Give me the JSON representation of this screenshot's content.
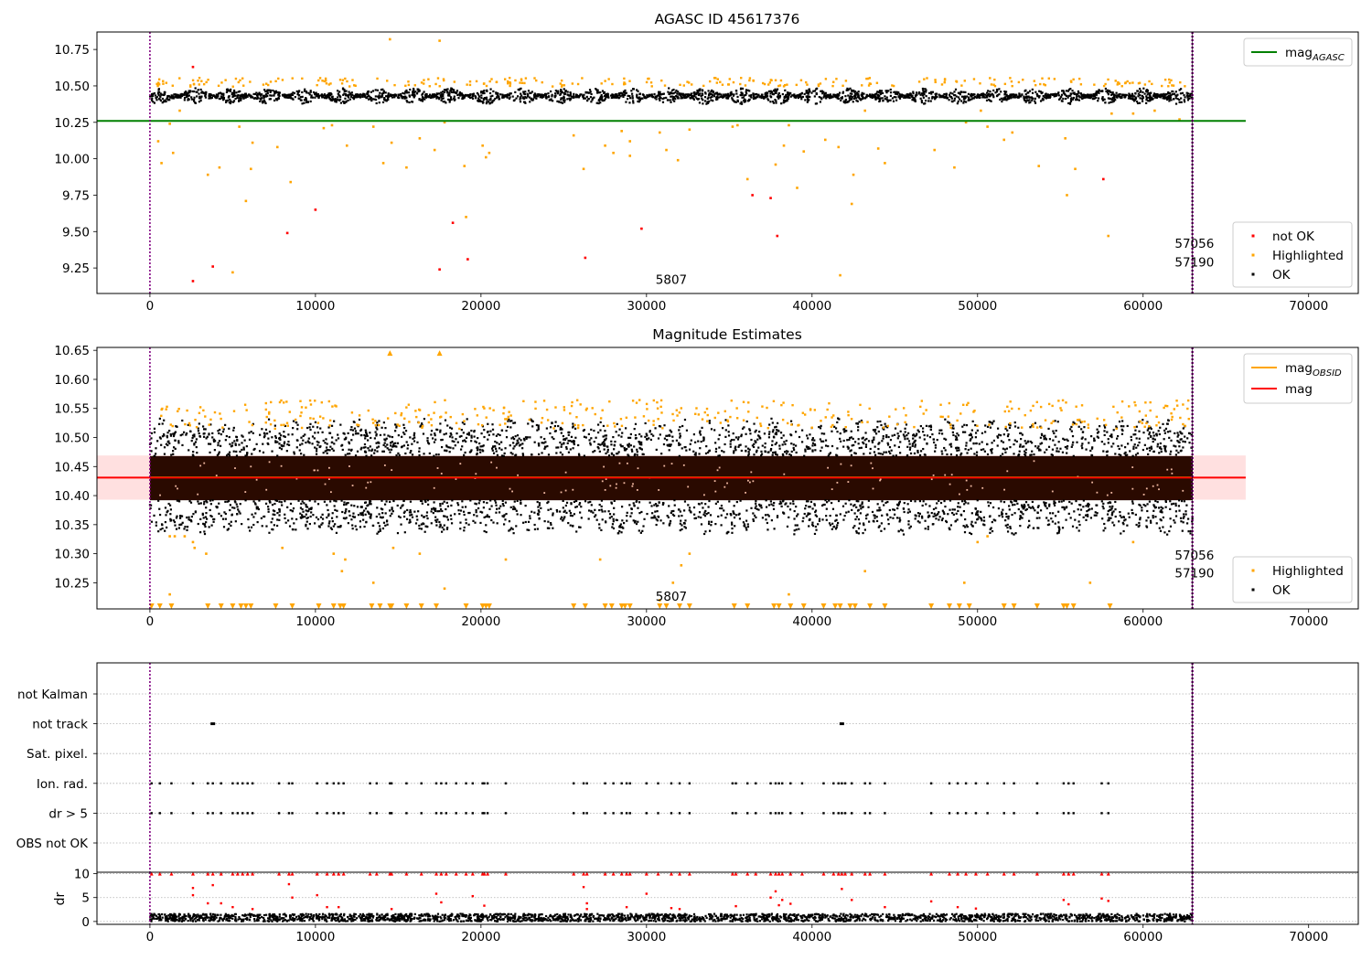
{
  "colors": {
    "ok": "#000000",
    "highlighted": "#ffa500",
    "not_ok": "#ff0000",
    "agasc_line": "#008000",
    "mag_line": "#ff0000",
    "obsid_line": "#ffa500",
    "band": "#ffcccc",
    "obs_line": "#800080",
    "grid": "#b0b0b0"
  },
  "chart_data": [
    {
      "type": "scatter",
      "title": "AGASC ID 45617376",
      "xlim": [
        -3200,
        73000
      ],
      "ylim": [
        9.075,
        10.87
      ],
      "xticks": [
        0,
        10000,
        20000,
        30000,
        40000,
        50000,
        60000,
        70000
      ],
      "yticks": [
        9.25,
        9.5,
        9.75,
        10.0,
        10.25,
        10.5,
        10.75
      ],
      "hlines": [
        {
          "name": "mag",
          "sub": "AGASC",
          "y": 10.26,
          "x_range": [
            -3200,
            66200
          ],
          "color": "#008000"
        }
      ],
      "vlines": [
        0,
        62980
      ],
      "annotations": [
        {
          "text": "5807",
          "x": 31500,
          "y": 9.14
        },
        {
          "text": "57056",
          "x": 63100,
          "y": 9.39
        },
        {
          "text": "57190",
          "x": 63100,
          "y": 9.26
        }
      ],
      "ok_band": {
        "center": 10.43,
        "halfwidth": 0.055,
        "x_range": [
          0,
          62980
        ]
      },
      "series": [
        {
          "name": "not OK",
          "color": "#ff0000",
          "points": [
            [
              2600,
              10.63
            ],
            [
              2600,
              9.16
            ],
            [
              3800,
              9.26
            ],
            [
              8300,
              9.49
            ],
            [
              10000,
              9.65
            ],
            [
              17500,
              9.24
            ],
            [
              18300,
              9.56
            ],
            [
              19200,
              9.31
            ],
            [
              26300,
              9.32
            ],
            [
              29700,
              9.52
            ],
            [
              36400,
              9.75
            ],
            [
              37500,
              9.73
            ],
            [
              37900,
              9.47
            ],
            [
              57600,
              9.86
            ]
          ]
        },
        {
          "name": "Highlighted",
          "color": "#ffa500",
          "points": [
            [
              500,
              10.12
            ],
            [
              700,
              9.97
            ],
            [
              1200,
              10.24
            ],
            [
              1400,
              10.04
            ],
            [
              1800,
              10.33
            ],
            [
              3500,
              9.89
            ],
            [
              4200,
              9.94
            ],
            [
              5000,
              9.22
            ],
            [
              5400,
              10.22
            ],
            [
              5800,
              9.71
            ],
            [
              6100,
              9.93
            ],
            [
              6200,
              10.11
            ],
            [
              7700,
              10.08
            ],
            [
              8500,
              9.84
            ],
            [
              10500,
              10.21
            ],
            [
              11000,
              10.23
            ],
            [
              11900,
              10.09
            ],
            [
              13500,
              10.22
            ],
            [
              14100,
              9.97
            ],
            [
              14500,
              10.82
            ],
            [
              14600,
              10.11
            ],
            [
              15500,
              9.94
            ],
            [
              16300,
              10.14
            ],
            [
              17200,
              10.06
            ],
            [
              17500,
              10.81
            ],
            [
              17800,
              10.25
            ],
            [
              19000,
              9.95
            ],
            [
              19100,
              9.6
            ],
            [
              20100,
              10.09
            ],
            [
              20300,
              10.01
            ],
            [
              20500,
              10.04
            ],
            [
              25600,
              10.16
            ],
            [
              26200,
              9.93
            ],
            [
              27500,
              10.09
            ],
            [
              28000,
              10.04
            ],
            [
              28500,
              10.19
            ],
            [
              29000,
              10.02
            ],
            [
              29000,
              10.12
            ],
            [
              30800,
              10.18
            ],
            [
              31200,
              10.06
            ],
            [
              31900,
              9.99
            ],
            [
              32600,
              10.2
            ],
            [
              35200,
              10.22
            ],
            [
              35500,
              10.23
            ],
            [
              36100,
              9.86
            ],
            [
              37800,
              9.96
            ],
            [
              38300,
              10.09
            ],
            [
              38600,
              10.23
            ],
            [
              39100,
              9.8
            ],
            [
              39500,
              10.05
            ],
            [
              40800,
              10.13
            ],
            [
              41600,
              10.08
            ],
            [
              41700,
              9.2
            ],
            [
              42400,
              9.69
            ],
            [
              42500,
              9.89
            ],
            [
              43200,
              10.33
            ],
            [
              44000,
              10.07
            ],
            [
              44400,
              9.97
            ],
            [
              47400,
              10.06
            ],
            [
              48600,
              9.94
            ],
            [
              49300,
              10.25
            ],
            [
              50200,
              10.33
            ],
            [
              50600,
              10.22
            ],
            [
              51600,
              10.13
            ],
            [
              52100,
              10.18
            ],
            [
              53700,
              9.95
            ],
            [
              55300,
              10.14
            ],
            [
              55400,
              9.75
            ],
            [
              55900,
              9.93
            ],
            [
              57900,
              9.47
            ],
            [
              58100,
              10.31
            ],
            [
              59400,
              10.31
            ],
            [
              60700,
              10.33
            ],
            [
              62200,
              10.27
            ]
          ]
        }
      ],
      "legends": [
        [
          {
            "name": "mag",
            "sub": "AGASC",
            "kind": "line",
            "color": "#008000"
          }
        ],
        [
          {
            "name": "not OK",
            "kind": "marker",
            "color": "#ff0000"
          },
          {
            "name": "Highlighted",
            "kind": "marker",
            "color": "#ffa500"
          },
          {
            "name": "OK",
            "kind": "marker",
            "color": "#000000"
          }
        ]
      ]
    },
    {
      "type": "scatter",
      "title": "Magnitude Estimates",
      "xlim": [
        -3200,
        73000
      ],
      "ylim": [
        10.205,
        10.655
      ],
      "xticks": [
        0,
        10000,
        20000,
        30000,
        40000,
        50000,
        60000,
        70000
      ],
      "yticks": [
        10.25,
        10.3,
        10.35,
        10.4,
        10.45,
        10.5,
        10.55,
        10.6,
        10.65
      ],
      "hlines": [
        {
          "name": "mag",
          "y": 10.431,
          "x_range": [
            -3200,
            66200
          ],
          "color": "#ff0000",
          "band": [
            10.393,
            10.469
          ]
        }
      ],
      "vlines": [
        0,
        62980
      ],
      "annotations": [
        {
          "text": "5807",
          "x": 31500,
          "y": 10.219
        },
        {
          "text": "57056",
          "x": 63100,
          "y": 10.29
        },
        {
          "text": "57190",
          "x": 63100,
          "y": 10.259
        }
      ],
      "ok_band": {
        "center": 10.43,
        "halfwidth": 0.1
      },
      "series": [
        {
          "name": "Highlighted",
          "color": "#ffa500",
          "points": [
            [
              1200,
              10.33
            ],
            [
              1500,
              10.33
            ],
            [
              2100,
              10.33
            ],
            [
              2600,
              10.32
            ],
            [
              2700,
              10.31
            ],
            [
              3400,
              10.3
            ],
            [
              8000,
              10.31
            ],
            [
              11100,
              10.3
            ],
            [
              11600,
              10.27
            ],
            [
              11800,
              10.29
            ],
            [
              13500,
              10.25
            ],
            [
              14700,
              10.31
            ],
            [
              16300,
              10.3
            ],
            [
              17800,
              10.24
            ],
            [
              21500,
              10.29
            ],
            [
              27200,
              10.29
            ],
            [
              30800,
              10.22
            ],
            [
              31600,
              10.25
            ],
            [
              32100,
              10.28
            ],
            [
              32600,
              10.3
            ],
            [
              38600,
              10.23
            ],
            [
              43200,
              10.27
            ],
            [
              49200,
              10.25
            ],
            [
              50000,
              10.32
            ],
            [
              50600,
              10.33
            ],
            [
              56800,
              10.25
            ],
            [
              59400,
              10.32
            ],
            [
              1200,
              10.23
            ]
          ]
        },
        {
          "name": "Highlighted (clipped)",
          "color": "#ffa500",
          "points": [
            [
              14500,
              10.65
            ],
            [
              17500,
              10.65
            ]
          ]
        }
      ],
      "clipped_below_x": [
        100,
        600,
        1300,
        3500,
        4300,
        5000,
        5500,
        5800,
        6100,
        7600,
        8600,
        10200,
        11100,
        11500,
        11700,
        13400,
        13900,
        14500,
        14600,
        15500,
        16400,
        17300,
        19100,
        20100,
        20300,
        20500,
        25600,
        26300,
        27500,
        27900,
        28500,
        28700,
        29000,
        30800,
        31200,
        32000,
        32600,
        35300,
        36100,
        37700,
        38000,
        38700,
        39500,
        40700,
        41400,
        41700,
        42300,
        42600,
        43500,
        44400,
        47200,
        48300,
        48900,
        49500,
        51600,
        52200,
        53600,
        55200,
        55400,
        55800,
        58000
      ],
      "legends": [
        [
          {
            "name": "mag",
            "sub": "OBSID",
            "kind": "line",
            "color": "#ffa500"
          },
          {
            "name": "mag",
            "kind": "line",
            "color": "#ff0000"
          }
        ],
        [
          {
            "name": "Highlighted",
            "kind": "marker",
            "color": "#ffa500"
          },
          {
            "name": "OK",
            "kind": "marker",
            "color": "#000000"
          }
        ]
      ]
    },
    {
      "type": "scatter",
      "title": "",
      "xlim": [
        -3200,
        73000
      ],
      "categories": [
        "OBS not OK",
        "dr > 5",
        "Ion. rad.",
        "Sat. pixel.",
        "not track",
        "not Kalman"
      ],
      "vlines": [
        0,
        62980
      ],
      "flag_x": [
        100,
        600,
        1300,
        2600,
        3500,
        3800,
        4300,
        5000,
        5300,
        5600,
        5900,
        6200,
        7800,
        8400,
        8600,
        10100,
        10700,
        11100,
        11400,
        11700,
        13300,
        13700,
        14500,
        14600,
        15500,
        16400,
        17300,
        17600,
        17900,
        18500,
        19100,
        19500,
        20100,
        20200,
        20400,
        21500,
        25600,
        26200,
        26400,
        27500,
        28000,
        28500,
        28800,
        29000,
        30000,
        30700,
        31500,
        32000,
        32600,
        35200,
        35400,
        36100,
        36600,
        37500,
        37800,
        38000,
        38200,
        38700,
        39400,
        40700,
        41300,
        41600,
        41800,
        42000,
        42400,
        43200,
        43500,
        44400,
        47200,
        48300,
        48800,
        49300,
        49900,
        50600,
        51600,
        52200,
        53600,
        55200,
        55500,
        55800,
        57500,
        57900
      ],
      "not_track_x": [
        3800,
        41800
      ],
      "legends": []
    },
    {
      "type": "scatter",
      "title": "",
      "ylabel": "dr",
      "xlim": [
        -3200,
        73000
      ],
      "ylim": [
        -0.6,
        10.3
      ],
      "xticks": [
        0,
        10000,
        20000,
        30000,
        40000,
        50000,
        60000,
        70000
      ],
      "yticks": [
        0,
        5,
        10
      ],
      "vlines": [
        0,
        62980
      ],
      "dr_band": {
        "max": 1.6
      },
      "clipped_above_x": [
        100,
        600,
        1300,
        2600,
        3500,
        3800,
        4300,
        5000,
        5300,
        5600,
        5900,
        6200,
        7800,
        8400,
        8600,
        10100,
        10700,
        11100,
        11400,
        11700,
        13300,
        13700,
        14500,
        14600,
        15500,
        16400,
        17300,
        17600,
        17900,
        18500,
        19100,
        19500,
        20100,
        20200,
        20400,
        21500,
        25600,
        26200,
        26400,
        27500,
        28000,
        28500,
        28800,
        29000,
        30000,
        30700,
        31500,
        32000,
        32600,
        35200,
        35400,
        36100,
        36600,
        37500,
        37800,
        38000,
        38200,
        38700,
        39400,
        40700,
        41300,
        41600,
        41800,
        42000,
        42400,
        43200,
        43500,
        44400,
        47200,
        48300,
        48800,
        49300,
        49900,
        50600,
        51600,
        52200,
        53600,
        55200,
        55500,
        55800,
        57500,
        57900
      ],
      "outliers": [
        [
          2600,
          7.0
        ],
        [
          2600,
          5.5
        ],
        [
          3500,
          3.8
        ],
        [
          3800,
          7.6
        ],
        [
          4300,
          3.8
        ],
        [
          5000,
          3.0
        ],
        [
          6200,
          2.6
        ],
        [
          8400,
          7.8
        ],
        [
          8600,
          5.0
        ],
        [
          10100,
          5.5
        ],
        [
          10700,
          3.0
        ],
        [
          11400,
          3.0
        ],
        [
          14600,
          2.6
        ],
        [
          17300,
          5.8
        ],
        [
          17600,
          4.0
        ],
        [
          19500,
          5.3
        ],
        [
          20200,
          3.3
        ],
        [
          26200,
          7.2
        ],
        [
          26400,
          3.8
        ],
        [
          26400,
          2.6
        ],
        [
          28800,
          3.0
        ],
        [
          30000,
          5.8
        ],
        [
          31500,
          2.8
        ],
        [
          32000,
          2.6
        ],
        [
          35400,
          3.2
        ],
        [
          37500,
          5.0
        ],
        [
          37800,
          6.3
        ],
        [
          38000,
          3.4
        ],
        [
          38200,
          4.5
        ],
        [
          38700,
          3.7
        ],
        [
          41800,
          6.8
        ],
        [
          42400,
          4.5
        ],
        [
          44400,
          3.0
        ],
        [
          47200,
          4.2
        ],
        [
          48800,
          3.0
        ],
        [
          49900,
          2.7
        ],
        [
          55200,
          4.5
        ],
        [
          55500,
          3.6
        ],
        [
          57500,
          4.8
        ],
        [
          57900,
          4.3
        ]
      ],
      "legends": []
    }
  ]
}
